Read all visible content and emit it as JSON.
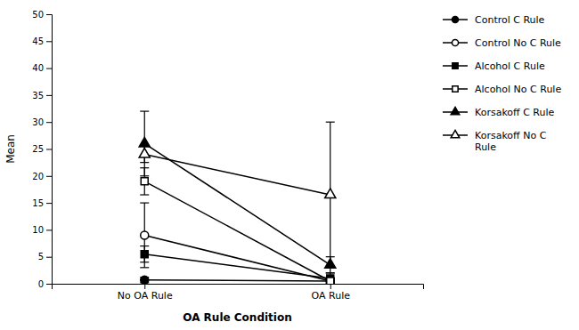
{
  "chart_data": {
    "type": "line",
    "categories": [
      "No OA Rule",
      "OA Rule"
    ],
    "series": [
      {
        "name": "Control C Rule",
        "color": "#000000",
        "marker": "circle",
        "line_style": "solid",
        "values": [
          0.7,
          0.5
        ],
        "errors": [
          0.5,
          0.5
        ]
      },
      {
        "name": "Control No C Rule",
        "color": "#000000",
        "marker": "circle-open",
        "line_style": "solid",
        "values": [
          9.0,
          0.5
        ],
        "errors": [
          6.0,
          0.5
        ]
      },
      {
        "name": "Alcohol C Rule",
        "color": "#000000",
        "marker": "square",
        "line_style": "solid",
        "values": [
          5.5,
          1.0
        ],
        "errors": [
          1.5,
          1.0
        ]
      },
      {
        "name": "Alcohol No C Rule",
        "color": "#000000",
        "marker": "square-open",
        "line_style": "solid",
        "values": [
          19.0,
          0.5
        ],
        "errors": [
          2.5,
          0.5
        ]
      },
      {
        "name": "Korsakoff C Rule",
        "color": "#000000",
        "marker": "triangle",
        "line_style": "solid",
        "values": [
          26.0,
          3.5
        ],
        "errors": [
          6.0,
          1.5
        ]
      },
      {
        "name": "Korsakoff No C\nRule",
        "color": "#000000",
        "marker": "triangle-open",
        "line_style": "solid",
        "values": [
          24.0,
          16.5
        ],
        "errors": [
          1.5,
          13.5
        ]
      }
    ],
    "xlabel": "OA Rule Condition",
    "ylabel": "Mean",
    "ylim": [
      0,
      50
    ],
    "yticks": [
      0,
      5,
      10,
      15,
      20,
      25,
      30,
      35,
      40,
      45,
      50
    ],
    "grid": false,
    "legend": "right"
  }
}
